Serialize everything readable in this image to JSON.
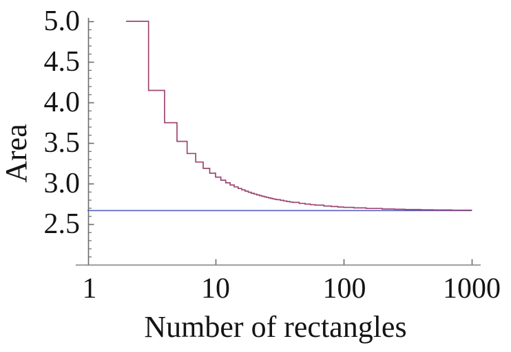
{
  "chart_data": {
    "type": "line",
    "title": "",
    "xlabel": "Number of rectangles",
    "ylabel": "Area",
    "x_scale": "log10",
    "xlim": [
      1,
      1000
    ],
    "ylim": [
      2.0,
      5.0
    ],
    "grid": false,
    "legend": false,
    "x_ticks": [
      1,
      10,
      100,
      1000
    ],
    "x_tick_labels": [
      "1",
      "10",
      "100",
      "1000"
    ],
    "y_ticks": [
      5.0,
      4.5,
      4.0,
      3.5,
      3.0,
      2.5
    ],
    "y_tick_labels": [
      "5.0",
      "4.5",
      "4.0",
      "3.5",
      "3.0",
      "2.5"
    ],
    "y_minor_ticks": {
      "from": 2.1,
      "to": 4.9,
      "step": 0.1
    },
    "colors": {
      "riemann_curve": "#9c4672",
      "exact_line": "#5a5fc0",
      "x_axis": "#999999",
      "y_axis": "#6b6b6b",
      "tick": "#6b6b6b",
      "text": "#141414"
    },
    "series": [
      {
        "name": "upper_riemann_sum",
        "style": "step-after",
        "color": "#9c4672",
        "x": [
          2,
          3,
          4,
          5,
          6,
          7,
          8,
          9,
          10,
          11,
          12,
          13,
          14,
          15,
          16,
          17,
          18,
          19,
          20,
          21,
          22,
          23,
          24,
          25,
          26,
          27,
          28,
          29,
          30,
          32,
          34,
          36,
          38,
          40,
          45,
          50,
          55,
          60,
          70,
          80,
          90,
          100,
          120,
          150,
          200,
          250,
          300,
          400,
          500,
          700,
          1000
        ],
        "y": [
          5.0,
          4.1481,
          3.75,
          3.52,
          3.3704,
          3.2653,
          3.1875,
          3.1276,
          3.08,
          3.0413,
          3.0093,
          2.9823,
          2.9592,
          2.9393,
          2.9219,
          2.9066,
          2.893,
          2.8809,
          2.87,
          2.8602,
          2.8513,
          2.8431,
          2.8356,
          2.8288,
          2.8225,
          2.8167,
          2.8112,
          2.8062,
          2.8015,
          2.793,
          2.7855,
          2.7788,
          2.7729,
          2.7675,
          2.7562,
          2.7472,
          2.7398,
          2.7337,
          2.7241,
          2.7169,
          2.7113,
          2.7068,
          2.7001,
          2.6934,
          2.6867,
          2.6827,
          2.6801,
          2.6767,
          2.6747,
          2.6724,
          2.6707
        ]
      },
      {
        "name": "exact_area",
        "style": "hline",
        "color": "#5a5fc0",
        "value": 2.6667,
        "x_span": [
          1,
          1000
        ]
      }
    ]
  }
}
